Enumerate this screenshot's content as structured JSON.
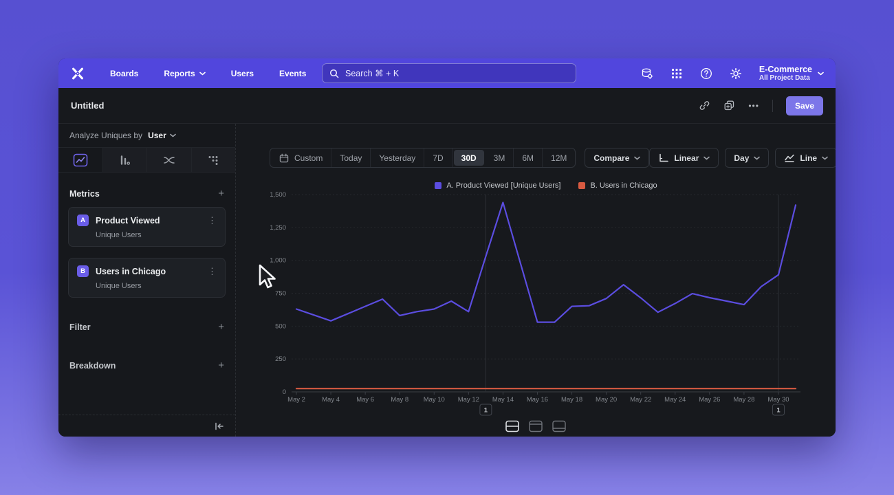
{
  "nav": {
    "brand": "Mixpanel",
    "items": [
      "Boards",
      "Reports",
      "Users",
      "Events"
    ],
    "search_placeholder": "Search  ⌘ + K",
    "project_name": "E-Commerce",
    "project_scope": "All Project Data"
  },
  "header": {
    "title": "Untitled",
    "save_label": "Save"
  },
  "icons": {
    "plus": "+",
    "more_vertical": "⋮",
    "ellipsis": "•••"
  },
  "sidebar": {
    "analyze_prefix": "Analyze Uniques by",
    "analyze_value": "User",
    "metrics_label": "Metrics",
    "filter_label": "Filter",
    "breakdown_label": "Breakdown",
    "metrics": [
      {
        "badge": "A",
        "name": "Product Viewed",
        "measure": "Unique Users"
      },
      {
        "badge": "B",
        "name": "Users in Chicago",
        "measure": "Unique Users"
      }
    ]
  },
  "toolbar": {
    "ranges": [
      "Custom",
      "Today",
      "Yesterday",
      "7D",
      "30D",
      "3M",
      "6M",
      "12M"
    ],
    "selected_range": "30D",
    "compare_label": "Compare",
    "scale_label": "Linear",
    "interval_label": "Day",
    "chart_style_label": "Line"
  },
  "chart_data": {
    "type": "line",
    "x": [
      "May 2",
      "May 3",
      "May 4",
      "May 5",
      "May 6",
      "May 7",
      "May 8",
      "May 9",
      "May 10",
      "May 11",
      "May 12",
      "May 13",
      "May 14",
      "May 15",
      "May 16",
      "May 17",
      "May 18",
      "May 19",
      "May 20",
      "May 21",
      "May 22",
      "May 23",
      "May 24",
      "May 25",
      "May 26",
      "May 27",
      "May 28",
      "May 29",
      "May 30",
      "May 31"
    ],
    "x_label_every": 2,
    "series": [
      {
        "name": "A. Product Viewed [Unique Users]",
        "color": "#5b4de0",
        "values": [
          630,
          585,
          540,
          595,
          650,
          705,
          580,
          610,
          630,
          690,
          610,
          1030,
          1440,
          985,
          530,
          530,
          650,
          655,
          710,
          815,
          715,
          605,
          672,
          747,
          716,
          690,
          663,
          800,
          890,
          1420
        ]
      },
      {
        "name": "B. Users in Chicago",
        "color": "#d75a41",
        "values": [
          25,
          25,
          25,
          25,
          25,
          25,
          25,
          25,
          25,
          25,
          25,
          25,
          25,
          25,
          25,
          25,
          25,
          25,
          25,
          25,
          25,
          25,
          25,
          25,
          25,
          25,
          25,
          25,
          25,
          25
        ]
      }
    ],
    "ylim": [
      0,
      1500
    ],
    "yticks": [
      0,
      250,
      500,
      750,
      1000,
      1250,
      1500
    ],
    "ytick_labels": [
      "0",
      "250",
      "500",
      "750",
      "1,000",
      "1,250",
      "1,500"
    ],
    "grid": "horizontal-dashed",
    "legend_position": "top-center",
    "annotations": [
      {
        "label": "1",
        "x": "May 13"
      },
      {
        "label": "1",
        "x": "May 30"
      }
    ]
  },
  "footer": {
    "layouts": [
      "split",
      "chart",
      "table"
    ],
    "selected": "split"
  }
}
